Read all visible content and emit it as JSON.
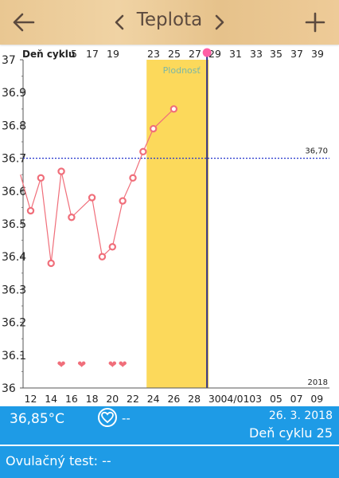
{
  "header": {
    "back_icon": "arrow-left-icon",
    "prev_icon": "chevron-left-icon",
    "title": "Teplota",
    "next_icon": "chevron-right-icon",
    "add_icon": "plus-icon"
  },
  "chart_data": {
    "type": "line",
    "title": "",
    "cycle_label": "Deň cyklu",
    "top_axis": {
      "ticks": [
        "5",
        "17",
        "19",
        "23",
        "25",
        "27",
        "29",
        "31",
        "33",
        "35",
        "37",
        "39"
      ]
    },
    "bottom_axis": {
      "ticks": [
        "12",
        "14",
        "16",
        "18",
        "20",
        "22",
        "24",
        "26",
        "28",
        "30",
        "04/01",
        "03",
        "05",
        "07",
        "09"
      ],
      "year": "2018"
    },
    "y_axis": {
      "ticks": [
        "37",
        "36.9",
        "36.8",
        "36.7",
        "36.6",
        "36.5",
        "36.4",
        "36.3",
        "36.2",
        "36.1",
        "36"
      ],
      "ylim": [
        36.0,
        37.0
      ]
    },
    "reference_line": {
      "value": 36.7,
      "label": "36,70",
      "color": "#2233cc"
    },
    "fertile_window": {
      "label": "Plodnosť",
      "from_day": 24,
      "to_day": 30,
      "color": "#fcd95b"
    },
    "today_marker": {
      "day": 29.25,
      "color": "#2c2f8a",
      "dot_color": "#ff5fa6"
    },
    "series": [
      {
        "color": "#f06e7a",
        "points": [
          {
            "x": 11,
            "y": 36.65
          },
          {
            "x": 12,
            "y": 36.54
          },
          {
            "x": 13,
            "y": 36.64
          },
          {
            "x": 14,
            "y": 36.38
          },
          {
            "x": 15,
            "y": 36.66
          },
          {
            "x": 16,
            "y": 36.52
          },
          {
            "x": 18,
            "y": 36.58
          },
          {
            "x": 19,
            "y": 36.4
          },
          {
            "x": 20,
            "y": 36.43
          },
          {
            "x": 21,
            "y": 36.57
          },
          {
            "x": 22,
            "y": 36.64
          },
          {
            "x": 23,
            "y": 36.72
          },
          {
            "x": 24,
            "y": 36.79
          },
          {
            "x": 26,
            "y": 36.85
          }
        ]
      }
    ],
    "heart_markers": {
      "days": [
        15,
        17,
        20,
        21
      ],
      "color": "#f06e7a",
      "symbol": "❤"
    }
  },
  "info_bar": {
    "temperature": "36,85°C",
    "heart_icon": "heart-circle-icon",
    "heart_value": "--",
    "date": "26. 3. 2018",
    "cycle_day": "Deň cyklu 25"
  },
  "ovulation": {
    "label": "Ovulačný test: --"
  }
}
